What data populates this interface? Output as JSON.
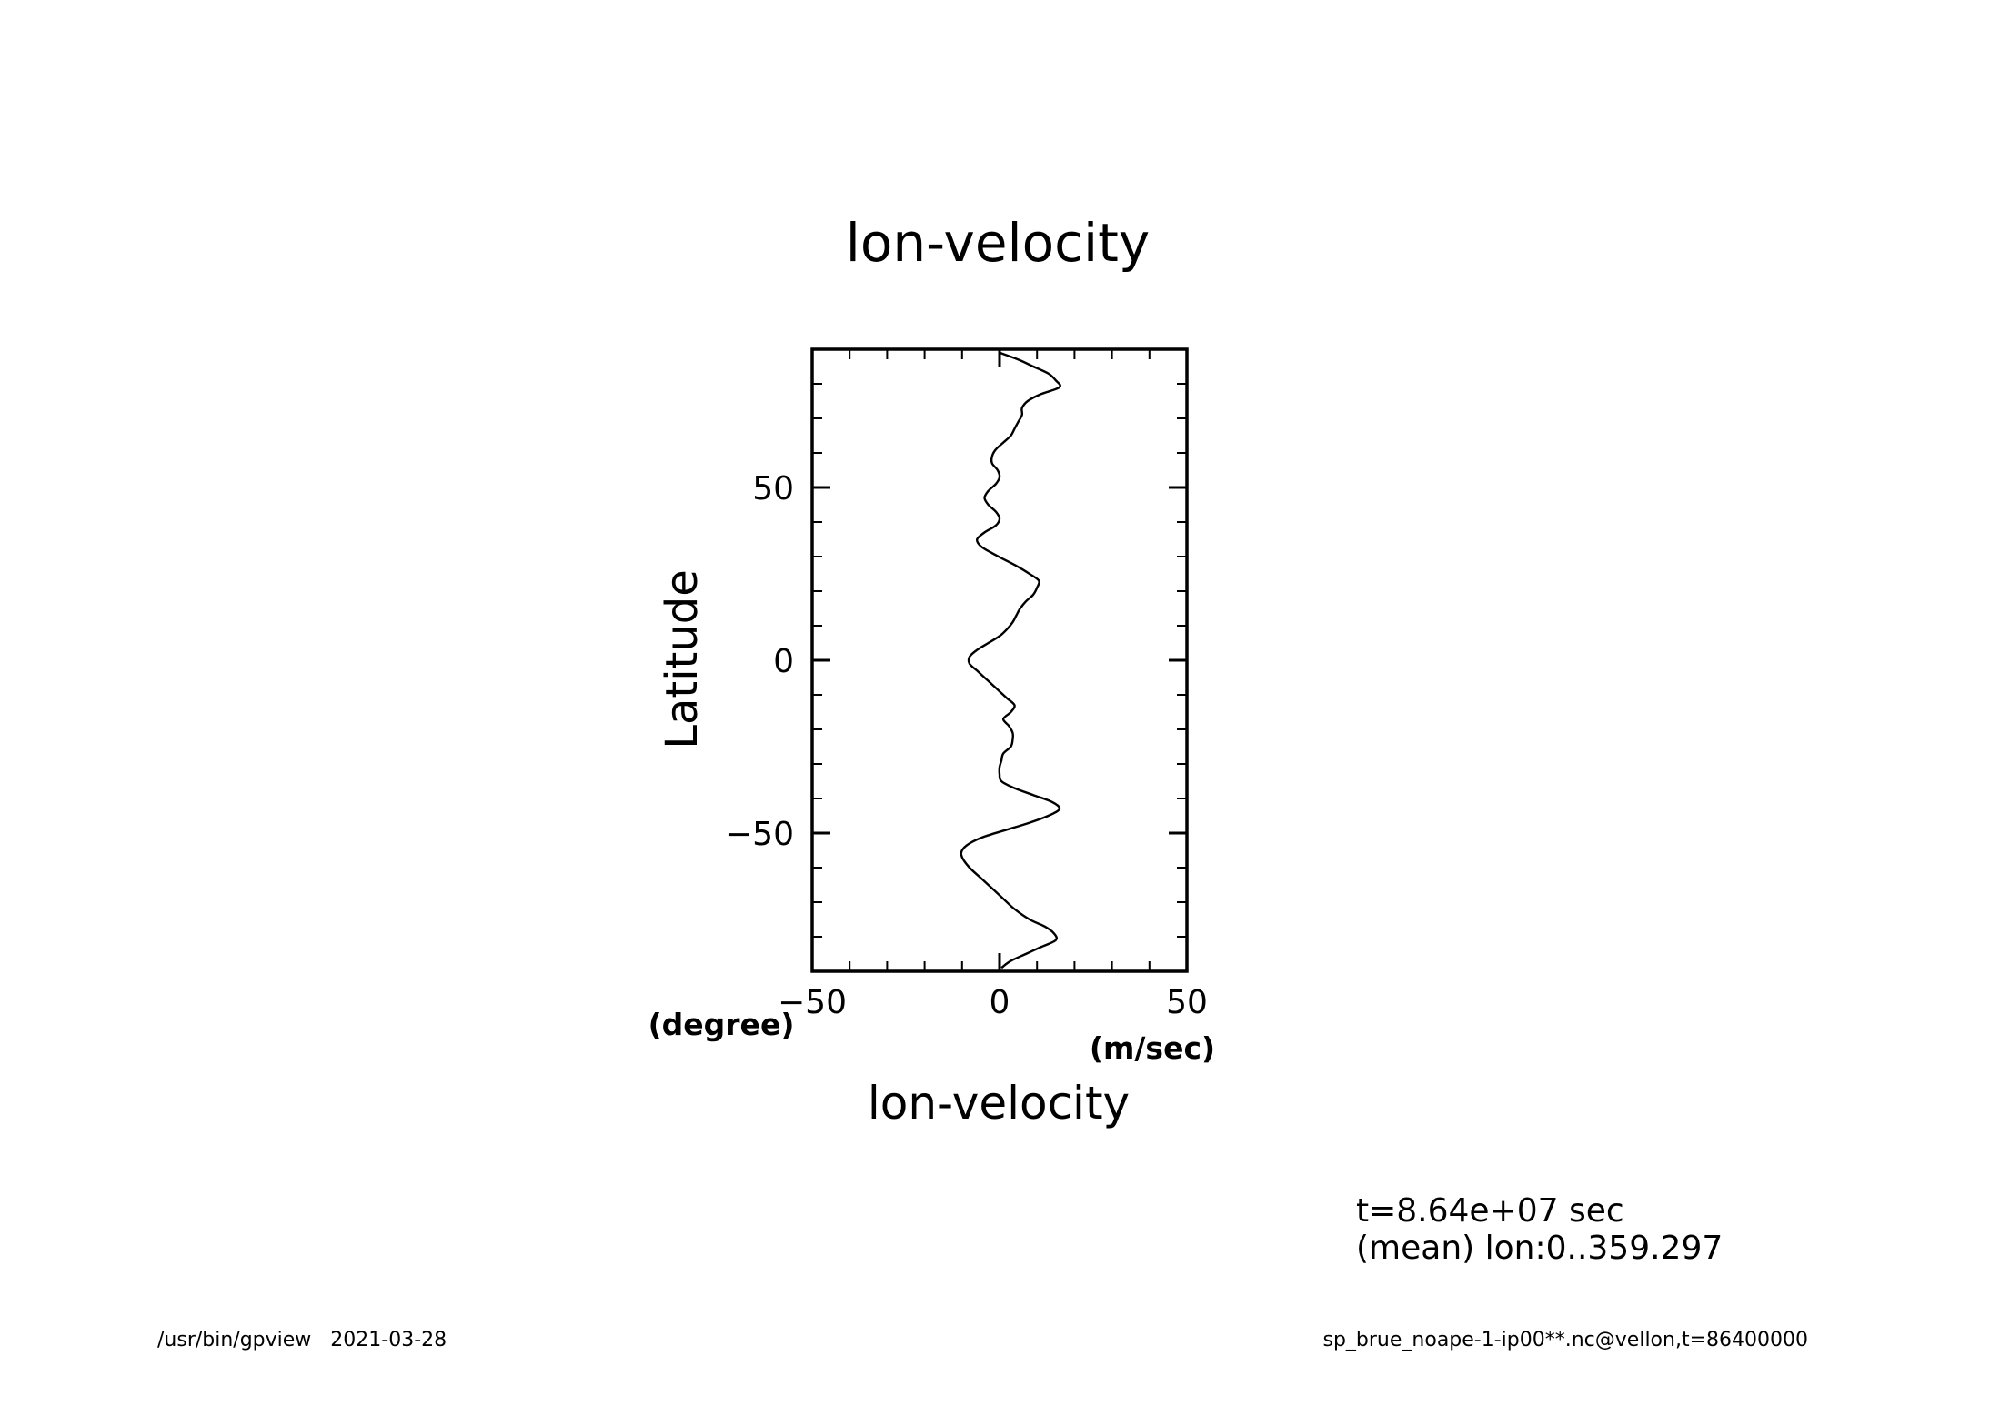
{
  "chart_data": {
    "type": "line",
    "title": "lon-velocity",
    "xlabel": "lon-velocity",
    "ylabel": "Latitude",
    "x_units": "(m/sec)",
    "y_units": "(degree)",
    "xlim": [
      -50,
      50
    ],
    "ylim": [
      -90,
      90
    ],
    "xticks": [
      -50,
      0,
      50
    ],
    "xtick_labels": [
      "−50",
      "0",
      "50"
    ],
    "yticks": [
      -50,
      0,
      50
    ],
    "ytick_labels": [
      "−50",
      "0",
      "50"
    ],
    "x_minor_step": 10,
    "y_minor_step": 10,
    "grid": false,
    "series": [
      {
        "lat": [
          -89,
          -87,
          -85,
          -83,
          -81,
          -79,
          -77,
          -75,
          -72,
          -69,
          -66,
          -63,
          -60,
          -57,
          -55,
          -53,
          -51,
          -49,
          -47,
          -45,
          -43,
          -41,
          -39,
          -37,
          -35,
          -33,
          -31,
          -29,
          -27,
          -25,
          -23,
          -21,
          -19,
          -17,
          -15,
          -13,
          -11,
          -9,
          -7,
          -5,
          -3,
          -1,
          1,
          3,
          5,
          7,
          9,
          11,
          13,
          15,
          17,
          19,
          21,
          23,
          25,
          27,
          29,
          31,
          33,
          35,
          37,
          39,
          41,
          43,
          45,
          47,
          49,
          51,
          53,
          55,
          57,
          59,
          61,
          63,
          65,
          67,
          69,
          71,
          73,
          75,
          77,
          79,
          81,
          83,
          85,
          87,
          89
        ],
        "u": [
          0.5,
          3,
          7,
          11,
          15,
          14.5,
          12,
          8,
          4,
          1,
          -2,
          -5,
          -8,
          -10,
          -10,
          -8,
          -4,
          2,
          8,
          13,
          16,
          14,
          9,
          4,
          0.5,
          0,
          0,
          0.5,
          1,
          3,
          3.5,
          3.5,
          2.5,
          1,
          3,
          4,
          2,
          0,
          -2,
          -4,
          -6,
          -8,
          -8,
          -6,
          -3,
          0,
          2,
          3.5,
          4.5,
          5.5,
          7,
          9,
          10,
          10.5,
          8,
          5,
          1.5,
          -2,
          -5,
          -6,
          -4,
          -1,
          0,
          -1,
          -3,
          -4,
          -3,
          -1,
          0,
          -0.5,
          -2,
          -2,
          -1,
          1,
          3,
          4,
          5,
          6,
          6,
          7.5,
          11,
          16,
          15,
          13,
          9,
          5,
          0
        ]
      }
    ]
  },
  "annotations": {
    "time": "t=8.64e+07 sec",
    "mean": "(mean) lon:0..359.297"
  },
  "footer": {
    "left": "/usr/bin/gpview   2021-03-28",
    "right": "sp_brue_noape-1-ip00**.nc@vellon,t=86400000"
  }
}
